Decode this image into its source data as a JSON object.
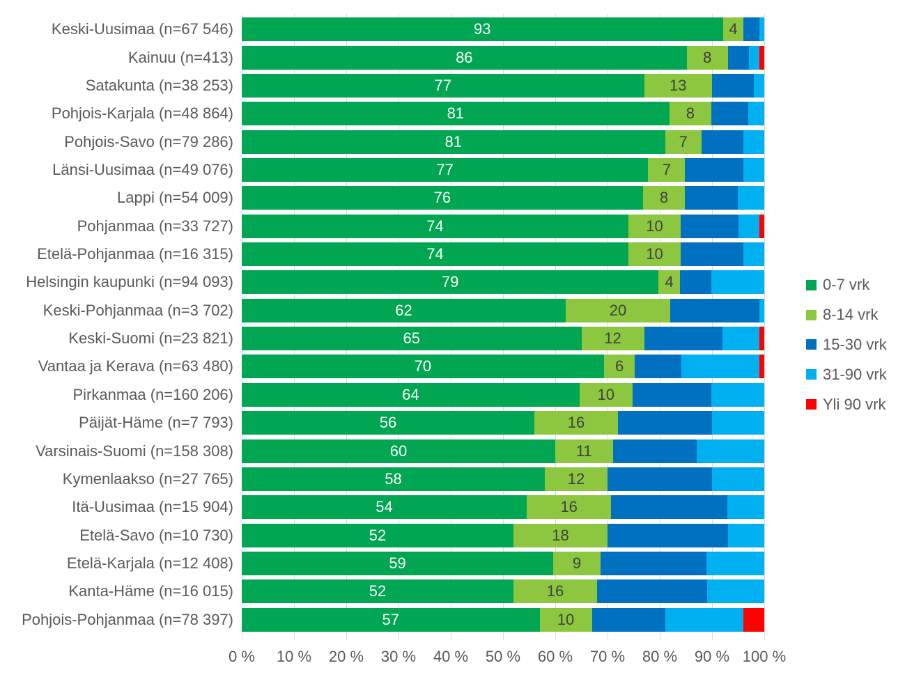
{
  "chart": {
    "background_color": "#FFFFFF",
    "axis_text_color": "#595959",
    "category_text_color": "#595959",
    "gridline_color": "#D9D9D9",
    "value_label_on_first_series_color": "#FFFFFF",
    "value_label_on_second_series_color": "#404040"
  },
  "chart_data": {
    "type": "bar",
    "subtype": "horizontal-stacked-100-percent",
    "title": "",
    "xlabel": "",
    "ylabel": "",
    "xlim": [
      0,
      100
    ],
    "grid": true,
    "legend_position": "right",
    "value_labels_shown_for_series": [
      0,
      1
    ],
    "categories": [
      "Keski-Uusimaa (n=67 546)",
      "Kainuu (n=413)",
      "Satakunta (n=38 253)",
      "Pohjois-Karjala (n=48 864)",
      "Pohjois-Savo (n=79 286)",
      "Länsi-Uusimaa (n=49 076)",
      "Lappi (n=54 009)",
      "Pohjanmaa (n=33 727)",
      "Etelä-Pohjanmaa (n=16 315)",
      "Helsingin kaupunki (n=94 093)",
      "Keski-Pohjanmaa (n=3 702)",
      "Keski-Suomi (n=23 821)",
      "Vantaa ja Kerava (n=63 480)",
      "Pirkanmaa (n=160 206)",
      "Päijät-Häme (n=7 793)",
      "Varsinais-Suomi (n=158 308)",
      "Kymenlaakso (n=27 765)",
      "Itä-Uusimaa (n=15 904)",
      "Etelä-Savo (n=10 730)",
      "Etelä-Karjala (n=12 408)",
      "Kanta-Häme (n=16 015)",
      "Pohjois-Pohjanmaa (n=78 397)"
    ],
    "series": [
      {
        "name": "0-7 vrk",
        "color": "#00A651",
        "values": [
          93,
          86,
          77,
          81,
          81,
          77,
          76,
          74,
          74,
          79,
          62,
          65,
          70,
          64,
          56,
          60,
          58,
          54,
          52,
          59,
          52,
          57
        ]
      },
      {
        "name": "8-14 vrk",
        "color": "#8DC63F",
        "values": [
          4,
          8,
          13,
          8,
          7,
          7,
          8,
          10,
          10,
          4,
          20,
          12,
          6,
          10,
          16,
          11,
          12,
          16,
          18,
          9,
          16,
          10
        ]
      },
      {
        "name": "15-30 vrk",
        "color": "#0070C0",
        "values": [
          3,
          4,
          8,
          7,
          8,
          11,
          10,
          11,
          12,
          6,
          17,
          15,
          9,
          15,
          18,
          16,
          20,
          22,
          23,
          20,
          21,
          14
        ]
      },
      {
        "name": "31-90 vrk",
        "color": "#00B0F0",
        "values": [
          1,
          2,
          2,
          3,
          4,
          4,
          5,
          4,
          4,
          10,
          1,
          7,
          15,
          10,
          10,
          13,
          10,
          7,
          7,
          11,
          11,
          15
        ]
      },
      {
        "name": "Yli 90 vrk",
        "color": "#FF0000",
        "values": [
          0,
          1,
          0,
          0,
          0,
          0,
          0,
          1,
          0,
          0,
          0,
          1,
          1,
          0,
          0,
          0,
          0,
          0,
          0,
          0,
          0,
          4
        ]
      }
    ],
    "x_axis": {
      "ticks": [
        "0 %",
        "10 %",
        "20 %",
        "30 %",
        "40 %",
        "50 %",
        "60 %",
        "70 %",
        "80 %",
        "90 %",
        "100 %"
      ]
    },
    "legend": {
      "entries": [
        "0-7 vrk",
        "8-14 vrk",
        "15-30 vrk",
        "31-90 vrk",
        "Yli 90 vrk"
      ]
    }
  }
}
